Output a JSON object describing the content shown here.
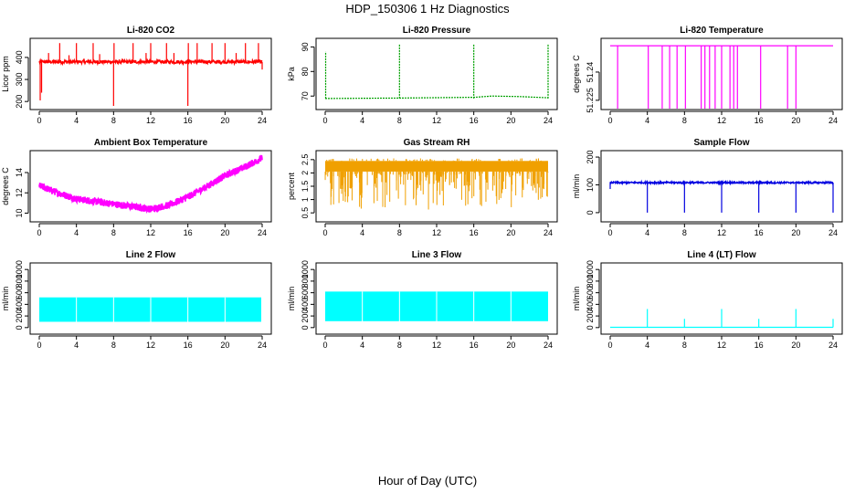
{
  "page": {
    "title": "HDP_150306  1 Hz Diagnostics",
    "xlabel": "Hour of Day (UTC)"
  },
  "chart_data": [
    {
      "id": "co2",
      "type": "line",
      "title": "Li-820 CO2",
      "ylabel": "Licor ppm",
      "color": "#ff0000",
      "xlim": [
        0,
        24
      ],
      "ylim": [
        180,
        470
      ],
      "xticks": [
        0,
        4,
        8,
        12,
        16,
        20,
        24
      ],
      "yticks": [
        200,
        300,
        400
      ],
      "baseline": 380,
      "noise": 8,
      "spikes": [
        {
          "x": 0.1,
          "y": 205
        },
        {
          "x": 0.25,
          "y": 240
        },
        {
          "x": 1.0,
          "y": 420
        },
        {
          "x": 2.2,
          "y": 465
        },
        {
          "x": 3.2,
          "y": 410
        },
        {
          "x": 4.0,
          "y": 465
        },
        {
          "x": 5.8,
          "y": 465
        },
        {
          "x": 6.5,
          "y": 415
        },
        {
          "x": 8.0,
          "y": 180
        },
        {
          "x": 8.05,
          "y": 465
        },
        {
          "x": 10.1,
          "y": 465
        },
        {
          "x": 11.5,
          "y": 420
        },
        {
          "x": 12.0,
          "y": 465
        },
        {
          "x": 13.7,
          "y": 465
        },
        {
          "x": 14.5,
          "y": 420
        },
        {
          "x": 16.0,
          "y": 180
        },
        {
          "x": 16.05,
          "y": 465
        },
        {
          "x": 17.0,
          "y": 465
        },
        {
          "x": 18.6,
          "y": 465
        },
        {
          "x": 20.0,
          "y": 465
        },
        {
          "x": 21.2,
          "y": 420
        },
        {
          "x": 22.2,
          "y": 465
        },
        {
          "x": 23.6,
          "y": 465
        },
        {
          "x": 24.0,
          "y": 345
        }
      ]
    },
    {
      "id": "pressure",
      "type": "line",
      "title": "Li-820 Pressure",
      "ylabel": "kPa",
      "color": "#00a000",
      "dashed": true,
      "xlim": [
        0,
        24
      ],
      "ylim": [
        66,
        92
      ],
      "xticks": [
        0,
        4,
        8,
        12,
        16,
        20,
        24
      ],
      "yticks": [
        70,
        80,
        90
      ],
      "baseline": 69,
      "segments": [
        {
          "x": 0,
          "y": 69
        },
        {
          "x": 7.9,
          "y": 69.2
        },
        {
          "x": 16,
          "y": 69.5
        },
        {
          "x": 18,
          "y": 70
        },
        {
          "x": 21,
          "y": 69.8
        },
        {
          "x": 24,
          "y": 69.3
        }
      ],
      "spikes": [
        {
          "x": 0.05,
          "y": 88
        },
        {
          "x": 8.0,
          "y": 91
        },
        {
          "x": 16.0,
          "y": 91
        },
        {
          "x": 24.0,
          "y": 91
        }
      ]
    },
    {
      "id": "licor_temp",
      "type": "line",
      "title": "Li-820 Temperature",
      "ylabel": "degrees C",
      "color": "#ff00ff",
      "xlim": [
        0,
        24
      ],
      "ylim": [
        51.222,
        51.256
      ],
      "xticks": [
        0,
        4,
        8,
        12,
        16,
        20,
        24
      ],
      "yticks": [
        51.225,
        51.24
      ],
      "baseline": 51.254,
      "dropouts": [
        0.8,
        4.1,
        5.6,
        6.4,
        7.2,
        8.1,
        9.8,
        10.2,
        10.7,
        11.3,
        12.0,
        12.9,
        13.3,
        13.7,
        16.2,
        19.1,
        20.0
      ]
    },
    {
      "id": "box_temp",
      "type": "line",
      "title": "Ambient Box Temperature",
      "ylabel": "degrees C",
      "color": "#ff00ff",
      "xlim": [
        0,
        24
      ],
      "ylim": [
        9.5,
        15.8
      ],
      "xticks": [
        0,
        4,
        8,
        12,
        16,
        20,
        24
      ],
      "yticks": [
        10,
        12,
        14
      ],
      "trend": [
        {
          "x": 0,
          "y": 12.7
        },
        {
          "x": 2,
          "y": 12.0
        },
        {
          "x": 4,
          "y": 11.4
        },
        {
          "x": 8,
          "y": 10.9
        },
        {
          "x": 12,
          "y": 10.4
        },
        {
          "x": 14,
          "y": 10.8
        },
        {
          "x": 16,
          "y": 11.6
        },
        {
          "x": 18,
          "y": 12.6
        },
        {
          "x": 20,
          "y": 13.7
        },
        {
          "x": 22,
          "y": 14.5
        },
        {
          "x": 24,
          "y": 15.4
        }
      ],
      "noise": 0.35
    },
    {
      "id": "rh",
      "type": "line",
      "title": "Gas Stream RH",
      "ylabel": "percent",
      "color": "#f0a000",
      "xlim": [
        0,
        24
      ],
      "ylim": [
        0.3,
        2.7
      ],
      "xticks": [
        0,
        4,
        8,
        12,
        16,
        20,
        24
      ],
      "yticks": [
        0.5,
        1.0,
        1.5,
        2.0,
        2.5
      ],
      "band": [
        2.05,
        2.45
      ],
      "lowest": 0.4
    },
    {
      "id": "sample_flow",
      "type": "line",
      "title": "Sample Flow",
      "ylabel": "ml/min",
      "color": "#0000e0",
      "xlim": [
        0,
        24
      ],
      "ylim": [
        -20,
        210
      ],
      "xticks": [
        0,
        4,
        8,
        12,
        16,
        20,
        24
      ],
      "yticks": [
        0,
        100,
        200
      ],
      "baseline": 108,
      "noise": 3,
      "dips": [
        {
          "x": 0.0,
          "y": 85
        },
        {
          "x": 4.0,
          "y": 0
        },
        {
          "x": 8.0,
          "y": 0
        },
        {
          "x": 12.0,
          "y": 0
        },
        {
          "x": 16.0,
          "y": 0
        },
        {
          "x": 20.0,
          "y": 0
        },
        {
          "x": 24.0,
          "y": 0
        }
      ]
    },
    {
      "id": "line2",
      "type": "line",
      "title": "Line 2 Flow",
      "ylabel": "ml/min",
      "color": "#00ffff",
      "xlim": [
        0,
        24
      ],
      "ylim": [
        -50,
        1050
      ],
      "xticks": [
        0,
        4,
        8,
        12,
        16,
        20,
        24
      ],
      "yticks": [
        0,
        200,
        400,
        600,
        800,
        1000
      ],
      "band": [
        100,
        520
      ],
      "ends_at": 23.9
    },
    {
      "id": "line3",
      "type": "line",
      "title": "Line 3 Flow",
      "ylabel": "ml/min",
      "color": "#00ffff",
      "xlim": [
        0,
        24
      ],
      "ylim": [
        -50,
        1050
      ],
      "xticks": [
        0,
        4,
        8,
        12,
        16,
        20,
        24
      ],
      "yticks": [
        0,
        200,
        400,
        600,
        800,
        1000
      ],
      "band": [
        110,
        620
      ],
      "ends_at": 24
    },
    {
      "id": "line4",
      "type": "line",
      "title": "Line 4 (LT) Flow",
      "ylabel": "ml/min",
      "color": "#00ffff",
      "xlim": [
        0,
        24
      ],
      "ylim": [
        -50,
        1050
      ],
      "xticks": [
        0,
        4,
        8,
        12,
        16,
        20,
        24
      ],
      "yticks": [
        0,
        200,
        400,
        600,
        800,
        1000
      ],
      "baseline": 5,
      "spikes": [
        {
          "x": 4.0,
          "y": 320
        },
        {
          "x": 8.0,
          "y": 150
        },
        {
          "x": 12.0,
          "y": 320
        },
        {
          "x": 16.0,
          "y": 150
        },
        {
          "x": 20.0,
          "y": 320
        },
        {
          "x": 24.0,
          "y": 150
        }
      ]
    }
  ]
}
